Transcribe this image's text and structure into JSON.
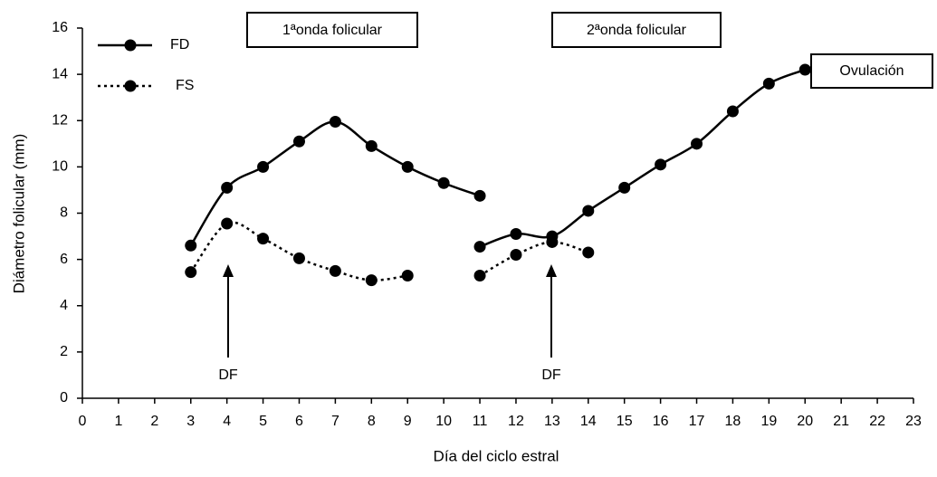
{
  "chart_data": {
    "type": "line",
    "x_label": "Día del ciclo estral",
    "y_label": "Diámetro folicular (mm)",
    "xlim": [
      0,
      23
    ],
    "ylim": [
      0,
      16
    ],
    "xticks": [
      0,
      1,
      2,
      3,
      4,
      5,
      6,
      7,
      8,
      9,
      10,
      11,
      12,
      13,
      14,
      15,
      16,
      17,
      18,
      19,
      20,
      21,
      22,
      23
    ],
    "yticks": [
      0,
      2,
      4,
      6,
      8,
      10,
      12,
      14,
      16
    ],
    "legend": "upper left",
    "grid": false,
    "series": [
      {
        "name": "FD",
        "color": "#000000",
        "line_style": "solid",
        "x": [
          3,
          4,
          5,
          6,
          7,
          8,
          9,
          10,
          11,
          null,
          11,
          12,
          13,
          14,
          15,
          16,
          17,
          18,
          19,
          20
        ],
        "values": [
          6.6,
          9.1,
          10.0,
          11.1,
          11.95,
          10.9,
          10.0,
          9.3,
          8.75,
          null,
          6.55,
          7.1,
          7.0,
          8.1,
          9.1,
          10.1,
          11.0,
          12.4,
          13.6,
          14.2
        ]
      },
      {
        "name": "FS",
        "color": "#000000",
        "line_style": "dotted",
        "x": [
          3,
          4,
          5,
          6,
          7,
          8,
          9,
          null,
          11,
          12,
          13,
          14
        ],
        "values": [
          5.45,
          7.55,
          6.9,
          6.05,
          5.5,
          5.1,
          5.3,
          null,
          5.3,
          6.2,
          6.75,
          6.3
        ]
      }
    ],
    "annotations": [
      "1ªonda folicular",
      "2ªonda folicular",
      "Ovulación",
      "DF",
      "DF"
    ]
  }
}
